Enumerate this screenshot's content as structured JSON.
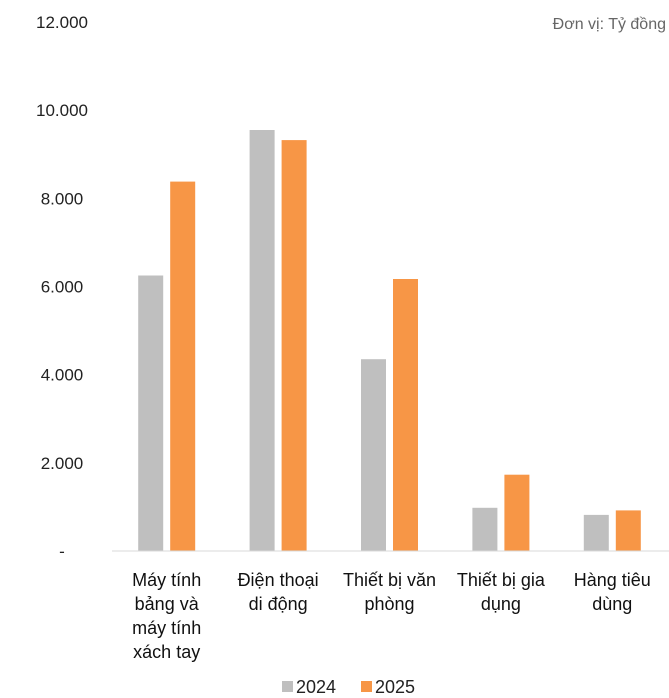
{
  "chart_data": {
    "type": "bar",
    "unit_note": "Đơn vị: Tỷ đồng",
    "categories": [
      [
        "Máy tính",
        "bảng và",
        "máy tính",
        "xách tay"
      ],
      [
        "Điện thoại",
        "di động"
      ],
      [
        "Thiết bị văn",
        "phòng"
      ],
      [
        "Thiết bị gia",
        "dụng"
      ],
      [
        "Hàng tiêu",
        "dùng"
      ]
    ],
    "series": [
      {
        "name": "2024",
        "color": "#BFBFBF",
        "values": [
          6250,
          9550,
          4350,
          980,
          820
        ]
      },
      {
        "name": "2025",
        "color": "#F79646",
        "values": [
          8380,
          9320,
          6170,
          1730,
          920
        ]
      }
    ],
    "ylim": [
      0,
      12000
    ],
    "yticks": [
      0,
      2000,
      4000,
      6000,
      8000,
      10000,
      12000
    ],
    "ytick_labels": [
      "-",
      "2.000",
      "4.000",
      "6.000",
      "8.000",
      "10.000",
      "12.000"
    ],
    "grid": false,
    "legend": "bottom-center"
  }
}
